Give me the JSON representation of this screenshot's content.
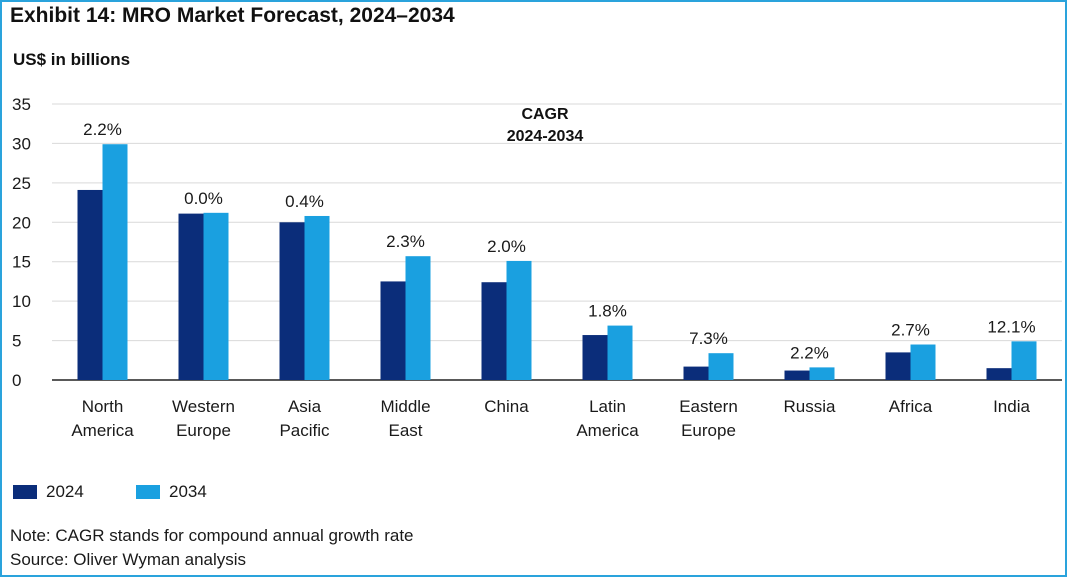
{
  "title": "Exhibit 14: MRO Market Forecast, 2024–2034",
  "unit_label": "US$ in billions",
  "note": "Note: CAGR stands for compound annual growth rate",
  "source": "Source: Oliver Wyman analysis",
  "colors": {
    "series_2024": "#0b2d7a",
    "series_2034": "#1aa0e0",
    "grid": "#d9d9d9",
    "frame": "#2aa3dc"
  },
  "chart_data": {
    "type": "bar",
    "title": "Exhibit 14: MRO Market Forecast, 2024–2034",
    "ylabel": "US$ in billions",
    "xlabel": "",
    "ylim": [
      0,
      35
    ],
    "yticks": [
      0,
      5,
      10,
      15,
      20,
      25,
      30,
      35
    ],
    "grid": true,
    "legend_position": "bottom-left",
    "annotation_title": [
      "CAGR",
      "2024-2034"
    ],
    "categories": [
      [
        "North",
        "America"
      ],
      [
        "Western",
        "Europe"
      ],
      [
        "Asia",
        "Pacific"
      ],
      [
        "Middle",
        "East"
      ],
      [
        "China"
      ],
      [
        "Latin",
        "America"
      ],
      [
        "Eastern",
        "Europe"
      ],
      [
        "Russia"
      ],
      [
        "Africa"
      ],
      [
        "India"
      ]
    ],
    "series": [
      {
        "name": "2024",
        "values": [
          24.1,
          21.1,
          20.0,
          12.5,
          12.4,
          5.7,
          1.7,
          1.2,
          3.5,
          1.5
        ]
      },
      {
        "name": "2034",
        "values": [
          29.9,
          21.2,
          20.8,
          15.7,
          15.1,
          6.9,
          3.4,
          1.6,
          4.5,
          4.9
        ]
      }
    ],
    "cagr_labels": [
      "2.2%",
      "0.0%",
      "0.4%",
      "2.3%",
      "2.0%",
      "1.8%",
      "7.3%",
      "2.2%",
      "2.7%",
      "12.1%"
    ]
  }
}
